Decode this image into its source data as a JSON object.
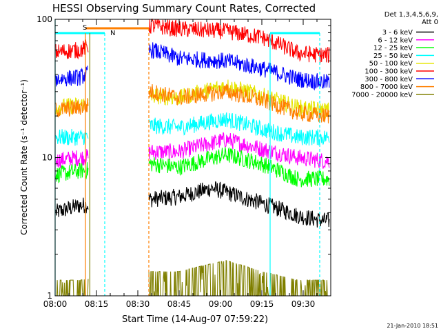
{
  "chart_data": {
    "type": "line",
    "title": "HESSI Observing Summary Count Rates, Corrected",
    "xlabel": "Start Time (14-Aug-07 07:59:22)",
    "ylabel": "Corrected Count Rate (s⁻¹ detector⁻¹)",
    "y_scale": "log",
    "ylim": [
      1,
      100
    ],
    "xlim_minutes_after_08:00": [
      0,
      100
    ],
    "x_ticks": [
      "08:00",
      "08:15",
      "08:30",
      "08:45",
      "09:00",
      "09:15",
      "09:30"
    ],
    "y_ticks": [
      "1",
      "10",
      "100"
    ],
    "grid": false,
    "legend_position": "top-right",
    "legend_header": [
      "Det 1,3,4,5,6,9,",
      "Att 0"
    ],
    "footer_date": "21-Jan-2010 18:51",
    "markers": [
      {
        "label": "S",
        "color": "#ff7f00"
      },
      {
        "label": "N",
        "color": "#00ffff"
      }
    ],
    "data_gaps": [
      [
        12,
        34
      ]
    ],
    "series": [
      {
        "name": "3 - 6 keV",
        "color": "#000000",
        "values": [
          [
            0,
            4.0
          ],
          [
            9,
            4.5
          ],
          [
            35,
            5.0
          ],
          [
            45,
            5.2
          ],
          [
            57,
            6.0
          ],
          [
            70,
            5.0
          ],
          [
            88,
            3.8
          ],
          [
            97,
            3.5
          ]
        ]
      },
      {
        "name": "6 - 12 keV",
        "color": "#ff00ff",
        "values": [
          [
            0,
            9.5
          ],
          [
            9,
            10.0
          ],
          [
            35,
            11.0
          ],
          [
            45,
            11.0
          ],
          [
            62,
            13.5
          ],
          [
            75,
            11.5
          ],
          [
            88,
            10.0
          ],
          [
            97,
            9.5
          ]
        ]
      },
      {
        "name": "12 - 25 keV",
        "color": "#00ff00",
        "values": [
          [
            0,
            7.5
          ],
          [
            9,
            8.0
          ],
          [
            35,
            9.0
          ],
          [
            45,
            8.5
          ],
          [
            62,
            10.5
          ],
          [
            75,
            9.0
          ],
          [
            88,
            7.0
          ],
          [
            97,
            7.0
          ]
        ]
      },
      {
        "name": "25 - 50 keV",
        "color": "#00ffff",
        "values": [
          [
            0,
            14.0
          ],
          [
            9,
            14.0
          ],
          [
            35,
            17.0
          ],
          [
            45,
            16.5
          ],
          [
            62,
            19.0
          ],
          [
            75,
            16.0
          ],
          [
            88,
            14.0
          ],
          [
            97,
            14.0
          ]
        ]
      },
      {
        "name": "50 - 100 keV",
        "color": "#e6e600",
        "values": [
          [
            0,
            23.0
          ],
          [
            9,
            24.0
          ],
          [
            35,
            28.0
          ],
          [
            45,
            27.0
          ],
          [
            62,
            33.0
          ],
          [
            75,
            28.0
          ],
          [
            88,
            23.0
          ],
          [
            97,
            22.0
          ]
        ]
      },
      {
        "name": "100 - 300 keV",
        "color": "#ff0000",
        "values": [
          [
            0,
            58.0
          ],
          [
            9,
            60.0
          ],
          [
            35,
            90.0
          ],
          [
            45,
            85.0
          ],
          [
            62,
            82.0
          ],
          [
            75,
            74.0
          ],
          [
            88,
            57.0
          ],
          [
            97,
            55.0
          ]
        ]
      },
      {
        "name": "300 - 800 keV",
        "color": "#0000ff",
        "values": [
          [
            0,
            37.0
          ],
          [
            9,
            38.0
          ],
          [
            35,
            60.0
          ],
          [
            45,
            52.0
          ],
          [
            62,
            50.0
          ],
          [
            75,
            44.0
          ],
          [
            88,
            37.0
          ],
          [
            97,
            35.0
          ]
        ]
      },
      {
        "name": "800 - 7000 keV",
        "color": "#ff7f00",
        "values": [
          [
            0,
            22.0
          ],
          [
            9,
            23.0
          ],
          [
            35,
            30.0
          ],
          [
            45,
            27.0
          ],
          [
            62,
            30.0
          ],
          [
            75,
            26.0
          ],
          [
            88,
            21.0
          ],
          [
            97,
            20.0
          ]
        ]
      },
      {
        "name": "7000 - 20000 keV",
        "color": "#808000",
        "values": [
          [
            0,
            1.3
          ],
          [
            9,
            1.3
          ],
          [
            35,
            1.5
          ],
          [
            45,
            1.5
          ],
          [
            62,
            1.8
          ],
          [
            75,
            1.5
          ],
          [
            88,
            1.3
          ],
          [
            97,
            1.3
          ]
        ]
      }
    ]
  }
}
